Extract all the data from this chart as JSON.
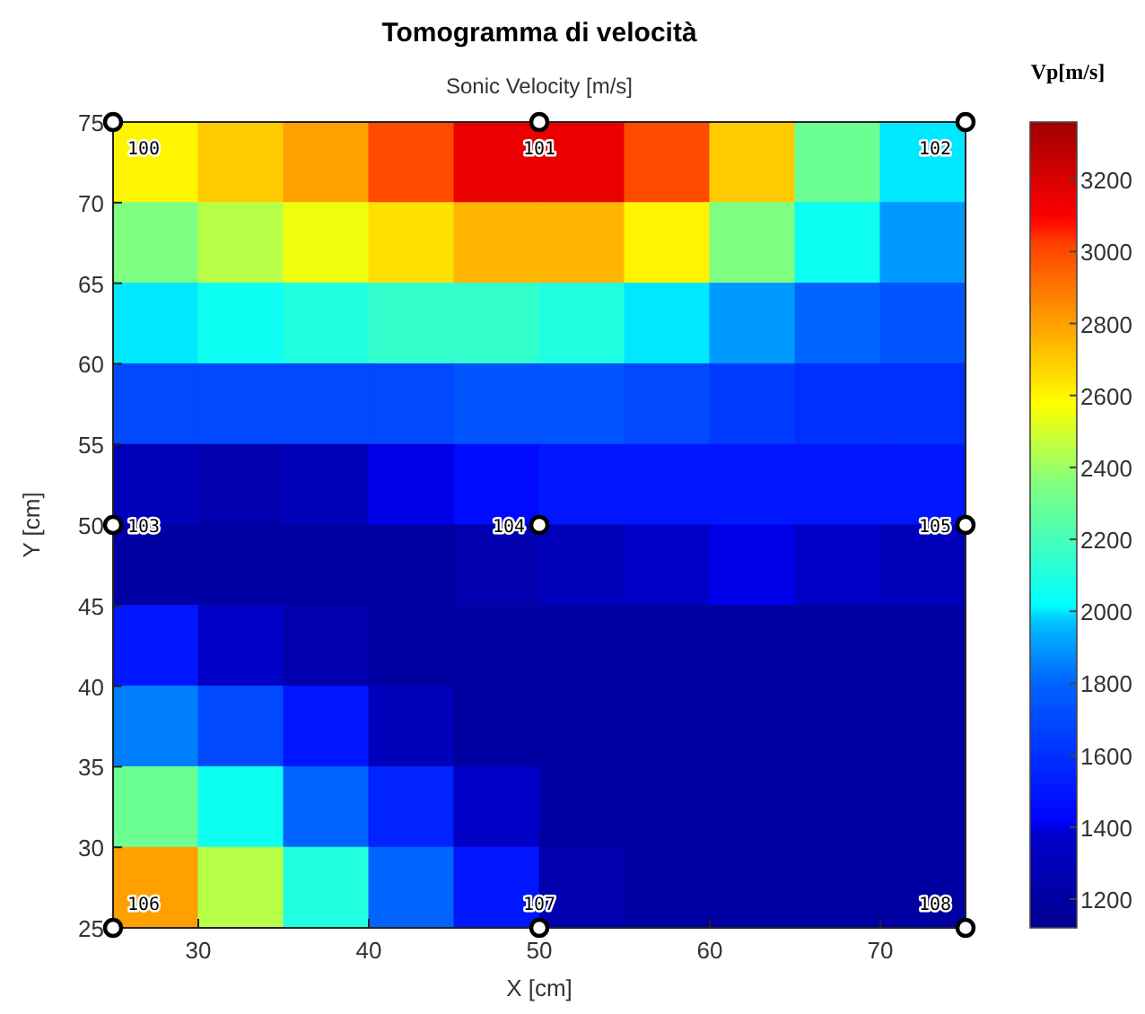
{
  "chart_data": {
    "type": "heatmap",
    "title": "Tomogramma di velocità",
    "subtitle": "Sonic Velocity [m/s]",
    "xlabel": "X [cm]",
    "ylabel": "Y [cm]",
    "clabel": "Vp[m/s]",
    "x": [
      27.5,
      32.5,
      37.5,
      42.5,
      47.5,
      52.5,
      57.5,
      62.5,
      67.5,
      72.5
    ],
    "y": [
      72.5,
      67.5,
      62.5,
      57.5,
      52.5,
      47.5,
      42.5,
      37.5,
      32.5,
      27.5
    ],
    "cells": [
      [
        2600,
        2700,
        2800,
        3000,
        3150,
        3150,
        3000,
        2700,
        2300,
        2000
      ],
      [
        2350,
        2450,
        2550,
        2650,
        2750,
        2750,
        2600,
        2350,
        2050,
        1900
      ],
      [
        2000,
        2050,
        2100,
        2150,
        2150,
        2100,
        2000,
        1900,
        1800,
        1750
      ],
      [
        1700,
        1700,
        1700,
        1700,
        1750,
        1750,
        1700,
        1650,
        1600,
        1600
      ],
      [
        1300,
        1250,
        1300,
        1400,
        1450,
        1500,
        1500,
        1500,
        1500,
        1500
      ],
      [
        1200,
        1200,
        1200,
        1200,
        1250,
        1300,
        1350,
        1400,
        1350,
        1300
      ],
      [
        1500,
        1350,
        1250,
        1200,
        1200,
        1200,
        1200,
        1200,
        1200,
        1200
      ],
      [
        1850,
        1700,
        1500,
        1300,
        1200,
        1200,
        1200,
        1200,
        1200,
        1200
      ],
      [
        2300,
        2050,
        1800,
        1550,
        1350,
        1200,
        1200,
        1200,
        1200,
        1200
      ],
      [
        2800,
        2450,
        2100,
        1800,
        1500,
        1250,
        1200,
        1200,
        1200,
        1200
      ]
    ],
    "clim": [
      1120,
      3360
    ],
    "cticks": [
      1200,
      1400,
      1600,
      1800,
      2000,
      2200,
      2400,
      2600,
      2800,
      3000,
      3200
    ],
    "xlim": [
      25,
      75
    ],
    "xticks": [
      30,
      40,
      50,
      60,
      70
    ],
    "ylim": [
      25,
      75
    ],
    "yticks": [
      25,
      30,
      35,
      40,
      45,
      50,
      55,
      60,
      65,
      70,
      75
    ],
    "series": [
      {
        "type": "scatter",
        "color": "#000000",
        "x": [
          25,
          50,
          75,
          25,
          50,
          75,
          25,
          50,
          75
        ],
        "values": [
          75,
          75,
          75,
          50,
          50,
          50,
          25,
          25,
          25
        ]
      }
    ],
    "marker": "circle",
    "annotations": [
      {
        "text": "100",
        "x": 25,
        "y": 75
      },
      {
        "text": "101",
        "x": 50,
        "y": 75
      },
      {
        "text": "102",
        "x": 75,
        "y": 75
      },
      {
        "text": "103",
        "x": 25,
        "y": 50
      },
      {
        "text": "104",
        "x": 50,
        "y": 50
      },
      {
        "text": "105",
        "x": 75,
        "y": 50
      },
      {
        "text": "106",
        "x": 25,
        "y": 25
      },
      {
        "text": "107",
        "x": 50,
        "y": 25
      },
      {
        "text": "108",
        "x": 75,
        "y": 25
      }
    ]
  }
}
